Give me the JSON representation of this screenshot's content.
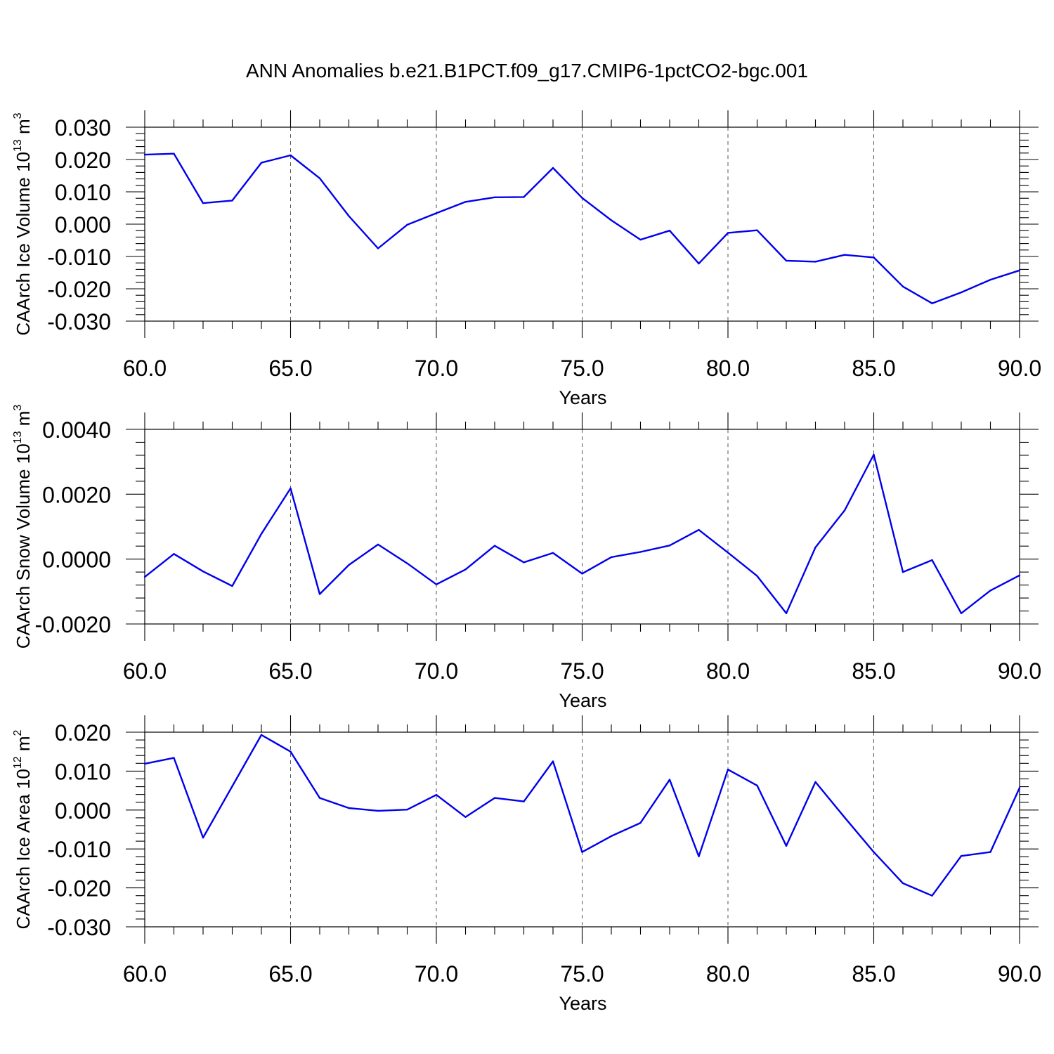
{
  "figure": {
    "title": "ANN Anomalies b.e21.B1PCT.f09_g17.CMIP6-1pctCO2-bgc.001"
  },
  "chart_data": [
    {
      "type": "line",
      "xlabel": "Years",
      "ylabel": "CAArch Ice Volume 10",
      "ylabel_exp": "13",
      "ylabel_unit": " m",
      "ylabel_unit_exp": "3",
      "xlim": [
        60,
        90
      ],
      "ylim": [
        -0.03,
        0.03
      ],
      "x_ticks": [
        "60.0",
        "65.0",
        "70.0",
        "75.0",
        "80.0",
        "85.0",
        "90.0"
      ],
      "y_ticks": [
        "0.030",
        "0.020",
        "0.010",
        "0.000",
        "-0.010",
        "-0.020",
        "-0.030"
      ],
      "y_tick_values": [
        0.03,
        0.02,
        0.01,
        0.0,
        -0.01,
        -0.02,
        -0.03
      ],
      "grid": "vertical-dashed",
      "color": "#0000ee",
      "x": [
        60,
        61,
        62,
        63,
        64,
        65,
        66,
        67,
        68,
        69,
        70,
        71,
        72,
        73,
        74,
        75,
        76,
        77,
        78,
        79,
        80,
        81,
        82,
        83,
        84,
        85,
        86,
        87,
        88,
        89,
        90
      ],
      "values": [
        0.0215,
        0.0218,
        0.0065,
        0.0073,
        0.019,
        0.0213,
        0.0142,
        0.0025,
        -0.0075,
        -0.0002,
        0.0034,
        0.0069,
        0.0083,
        0.0084,
        0.0174,
        0.0081,
        0.0012,
        -0.0048,
        -0.002,
        -0.0122,
        -0.0027,
        -0.0019,
        -0.0113,
        -0.0116,
        -0.0095,
        -0.0103,
        -0.0193,
        -0.0245,
        -0.0211,
        -0.0172,
        -0.0143
      ]
    },
    {
      "type": "line",
      "xlabel": "Years",
      "ylabel": "CAArch Snow Volume 10",
      "ylabel_exp": "13",
      "ylabel_unit": " m",
      "ylabel_unit_exp": "3",
      "xlim": [
        60,
        90
      ],
      "ylim": [
        -0.002,
        0.004
      ],
      "x_ticks": [
        "60.0",
        "65.0",
        "70.0",
        "75.0",
        "80.0",
        "85.0",
        "90.0"
      ],
      "y_ticks": [
        "0.0040",
        "0.0020",
        "0.0000",
        "-0.0020"
      ],
      "y_tick_values": [
        0.004,
        0.002,
        0.0,
        -0.002
      ],
      "grid": "vertical-dashed",
      "color": "#0000ee",
      "x": [
        60,
        61,
        62,
        63,
        64,
        65,
        66,
        67,
        68,
        69,
        70,
        71,
        72,
        73,
        74,
        75,
        76,
        77,
        78,
        79,
        80,
        81,
        82,
        83,
        84,
        85,
        86,
        87,
        88,
        89,
        90
      ],
      "values": [
        -0.00055,
        0.00016,
        -0.00038,
        -0.00083,
        0.00078,
        0.00218,
        -0.00108,
        -0.00018,
        0.00045,
        -0.00013,
        -0.00078,
        -0.00032,
        0.00041,
        -0.0001,
        0.00019,
        -0.00045,
        6e-05,
        0.00022,
        0.00042,
        0.0009,
        0.0002,
        -0.00052,
        -0.00167,
        0.00036,
        0.0015,
        0.00322,
        -0.0004,
        -3e-05,
        -0.00167,
        -0.00097,
        -0.0005
      ]
    },
    {
      "type": "line",
      "xlabel": "Years",
      "ylabel": "CAArch Ice Area 10",
      "ylabel_exp": "12",
      "ylabel_unit": " m",
      "ylabel_unit_exp": "2",
      "xlim": [
        60,
        90
      ],
      "ylim": [
        -0.03,
        0.02
      ],
      "x_ticks": [
        "60.0",
        "65.0",
        "70.0",
        "75.0",
        "80.0",
        "85.0",
        "90.0"
      ],
      "y_ticks": [
        "0.020",
        "0.010",
        "0.000",
        "-0.010",
        "-0.020",
        "-0.030"
      ],
      "y_tick_values": [
        0.02,
        0.01,
        0.0,
        -0.01,
        -0.02,
        -0.03
      ],
      "grid": "vertical-dashed",
      "color": "#0000ee",
      "x": [
        60,
        61,
        62,
        63,
        64,
        65,
        66,
        67,
        68,
        69,
        70,
        71,
        72,
        73,
        74,
        75,
        76,
        77,
        78,
        79,
        80,
        81,
        82,
        83,
        84,
        85,
        86,
        87,
        88,
        89,
        90
      ],
      "values": [
        0.0119,
        0.0134,
        -0.0071,
        0.0061,
        0.0193,
        0.015,
        0.0031,
        0.0005,
        -0.0002,
        0.0001,
        0.0039,
        -0.0018,
        0.0031,
        0.0022,
        0.0125,
        -0.0108,
        -0.0067,
        -0.0033,
        0.0078,
        -0.0119,
        0.0104,
        0.0063,
        -0.0092,
        0.0072,
        -0.0019,
        -0.0108,
        -0.0188,
        -0.022,
        -0.0118,
        -0.0108,
        0.0057
      ]
    }
  ]
}
